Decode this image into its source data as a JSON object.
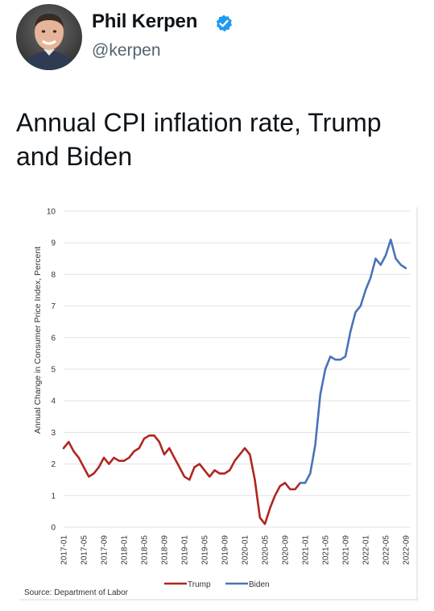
{
  "tweet": {
    "author_name": "Phil Kerpen",
    "author_handle": "@kerpen",
    "text": "Annual CPI inflation rate, Trump and Biden"
  },
  "icons": {
    "verified": "verified-badge-icon",
    "avatar": "avatar-photo"
  },
  "colors": {
    "trump": "#b0251f",
    "biden": "#4a72b8",
    "verified": "#1d9bf0"
  },
  "chart_data": {
    "type": "line",
    "title": "",
    "ylabel": "Annual Change in Consumer Price Index, Percent",
    "xlabel": "",
    "ylim": [
      0,
      10
    ],
    "yticks": [
      0,
      1,
      2,
      3,
      4,
      5,
      6,
      7,
      8,
      9,
      10
    ],
    "xticks": [
      "2017-01",
      "2017-05",
      "2017-09",
      "2018-01",
      "2018-05",
      "2018-09",
      "2019-01",
      "2019-05",
      "2019-09",
      "2020-01",
      "2020-05",
      "2020-09",
      "2021-01",
      "2021-05",
      "2021-09",
      "2022-01",
      "2022-05",
      "2022-09"
    ],
    "grid": true,
    "legend_position": "bottom",
    "source": "Source: Department of Labor",
    "series": [
      {
        "name": "Trump",
        "start": "2017-01",
        "values": [
          2.5,
          2.7,
          2.4,
          2.2,
          1.9,
          1.6,
          1.7,
          1.9,
          2.2,
          2.0,
          2.2,
          2.1,
          2.1,
          2.2,
          2.4,
          2.5,
          2.8,
          2.9,
          2.9,
          2.7,
          2.3,
          2.5,
          2.2,
          1.9,
          1.6,
          1.5,
          1.9,
          2.0,
          1.8,
          1.6,
          1.8,
          1.7,
          1.7,
          1.8,
          2.1,
          2.3,
          2.5,
          2.3,
          1.5,
          0.3,
          0.1,
          0.6,
          1.0,
          1.3,
          1.4,
          1.2,
          1.2,
          1.4
        ]
      },
      {
        "name": "Biden",
        "start": "2020-12",
        "values": [
          1.4,
          1.4,
          1.7,
          2.6,
          4.2,
          5.0,
          5.4,
          5.3,
          5.3,
          5.4,
          6.2,
          6.8,
          7.0,
          7.5,
          7.9,
          8.5,
          8.3,
          8.6,
          9.1,
          8.5,
          8.3,
          8.2
        ]
      }
    ]
  }
}
